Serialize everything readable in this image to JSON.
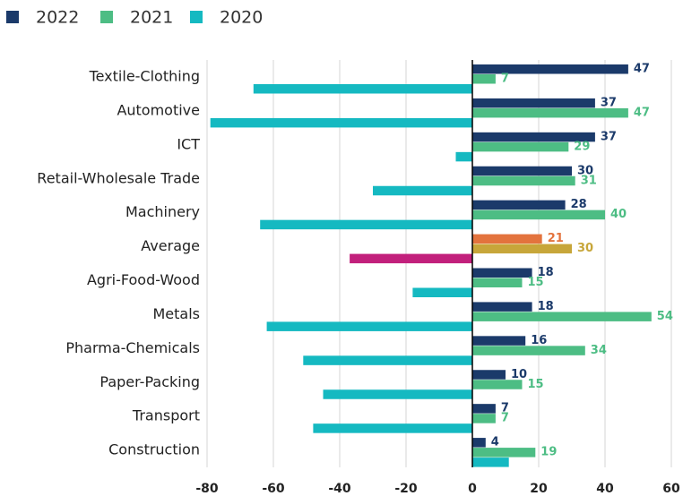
{
  "chart_data": {
    "type": "hbar",
    "categories": [
      "Textile-Clothing",
      "Automotive",
      "ICT",
      "Retail-Wholesale Trade",
      "Machinery",
      "Average",
      "Agri-Food-Wood",
      "Metals",
      "Pharma-Chemicals",
      "Paper-Packing",
      "Transport",
      "Construction"
    ],
    "series": [
      {
        "name": "2022",
        "color": "#1b3a6a",
        "highlight_color": "#e3733d",
        "labels": true,
        "values": [
          47,
          37,
          37,
          30,
          28,
          21,
          18,
          18,
          16,
          10,
          7,
          4
        ]
      },
      {
        "name": "2021",
        "color": "#4dbd84",
        "highlight_color": "#c7a63a",
        "labels": true,
        "values": [
          7,
          47,
          29,
          31,
          40,
          30,
          15,
          54,
          34,
          15,
          7,
          19
        ]
      },
      {
        "name": "2020",
        "color": "#15b9c1",
        "highlight_color": "#c2207c",
        "labels": false,
        "values": [
          -66,
          -79,
          -5,
          -30,
          -64,
          -37,
          -18,
          -62,
          -51,
          -45,
          -48,
          11
        ]
      }
    ],
    "highlight_index": 5,
    "xlim": [
      -80,
      60
    ],
    "xticks": [
      -80,
      -60,
      -40,
      -20,
      0,
      20,
      40,
      60
    ],
    "grid": true,
    "legend": "top-left"
  }
}
